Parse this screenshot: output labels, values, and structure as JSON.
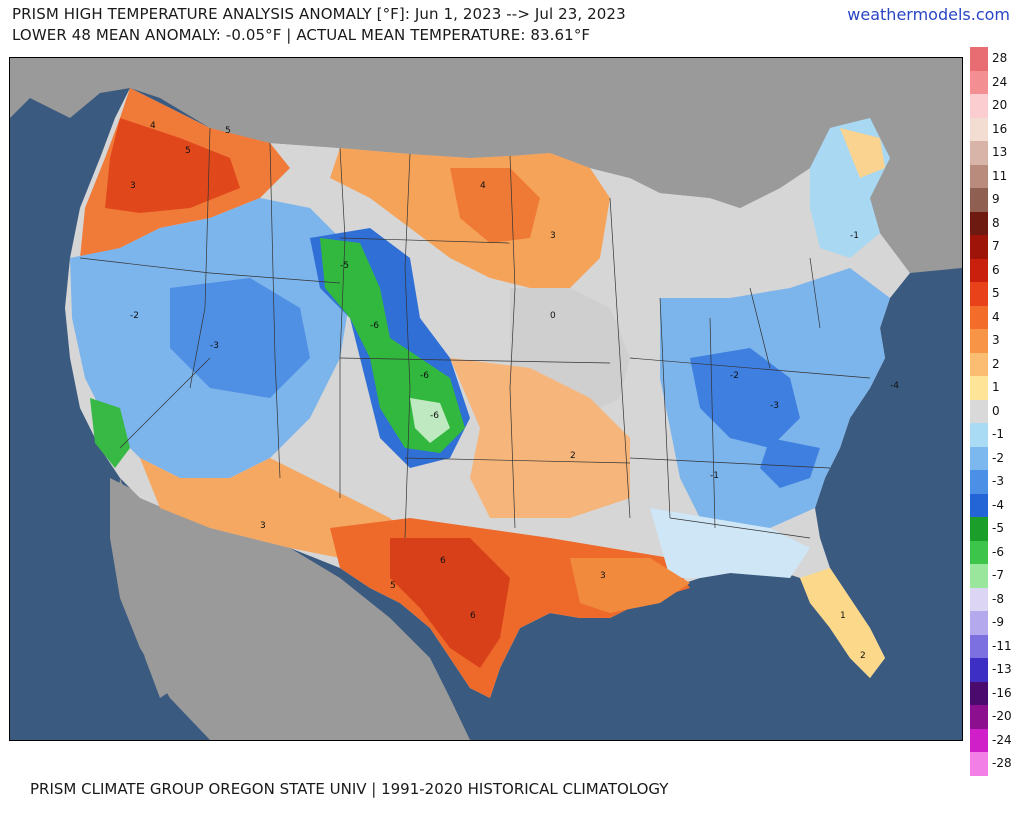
{
  "header": {
    "title_line1": "PRISM HIGH TEMPERATURE ANALYSIS ANOMALY [°F]: Jun 1, 2023 --> Jul 23, 2023",
    "title_line2": "LOWER 48 MEAN ANOMALY: -0.05°F | ACTUAL MEAN TEMPERATURE: 83.61°F",
    "brand": "weathermodels.com"
  },
  "footer": {
    "credit": "PRISM CLIMATE GROUP OREGON STATE UNIV | 1991-2020 HISTORICAL CLIMATOLOGY"
  },
  "colors": {
    "ocean": "#3b5a80",
    "land_outside": "#9a9a9a",
    "near_zero": "#d6d6d6",
    "hot": "#e8501e",
    "warm": "#f5a55a",
    "cool": "#6fa7ea",
    "cold": "#2f6fd6",
    "green": "#2fb33a"
  },
  "colorbar": [
    {
      "label": "28",
      "color": "#e86d72"
    },
    {
      "label": "24",
      "color": "#f38e92"
    },
    {
      "label": "20",
      "color": "#fbcdd0"
    },
    {
      "label": "16",
      "color": "#f3dcd2"
    },
    {
      "label": "13",
      "color": "#d8b3a7"
    },
    {
      "label": "11",
      "color": "#b88b7d"
    },
    {
      "label": "9",
      "color": "#8f5f52"
    },
    {
      "label": "8",
      "color": "#6e1a10"
    },
    {
      "label": "7",
      "color": "#9e1408"
    },
    {
      "label": "6",
      "color": "#c8200d"
    },
    {
      "label": "5",
      "color": "#e8421a"
    },
    {
      "label": "4",
      "color": "#f46c2a"
    },
    {
      "label": "3",
      "color": "#f79446"
    },
    {
      "label": "2",
      "color": "#fbbd72"
    },
    {
      "label": "1",
      "color": "#fde496"
    },
    {
      "label": "0",
      "color": "#d9d9d9"
    },
    {
      "label": "-1",
      "color": "#a9dcf4"
    },
    {
      "label": "-2",
      "color": "#7cb8ee"
    },
    {
      "label": "-3",
      "color": "#4b90e6"
    },
    {
      "label": "-4",
      "color": "#2364d6"
    },
    {
      "label": "-5",
      "color": "#1c9e2a"
    },
    {
      "label": "-6",
      "color": "#3cc54a"
    },
    {
      "label": "-7",
      "color": "#9be69d"
    },
    {
      "label": "-8",
      "color": "#dcd6f4"
    },
    {
      "label": "-9",
      "color": "#b3a9ec"
    },
    {
      "label": "-11",
      "color": "#7c6fe0"
    },
    {
      "label": "-13",
      "color": "#3d2fc4"
    },
    {
      "label": "-16",
      "color": "#4a0a6e"
    },
    {
      "label": "-20",
      "color": "#8c0f8f"
    },
    {
      "label": "-24",
      "color": "#d01fc9"
    },
    {
      "label": "-28",
      "color": "#f27fe6"
    }
  ]
}
